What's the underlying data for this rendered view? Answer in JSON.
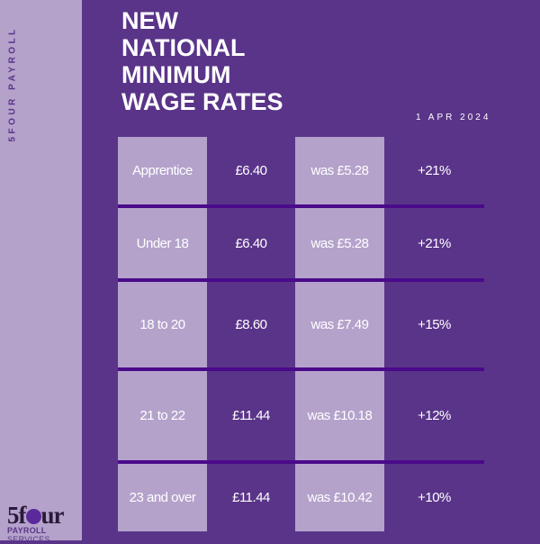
{
  "brand": {
    "side_label": "5FOUR PAYROLL",
    "logo_text": "5four",
    "logo_sub_bold": "PAYROLL",
    "logo_sub": "SERVICES"
  },
  "title": [
    "NEW",
    "NATIONAL",
    "MINIMUM",
    "WAGE RATES"
  ],
  "date": "1 APR 2024",
  "rows": [
    {
      "group": "Apprentice",
      "rate": "£6.40",
      "was": "was £5.28",
      "change": "+21%"
    },
    {
      "group": "Under 18",
      "rate": "£6.40",
      "was": "was £5.28",
      "change": "+21%"
    },
    {
      "group": "18 to 20",
      "rate": "£8.60",
      "was": "was £7.49",
      "change": "+15%"
    },
    {
      "group": "21 to 22",
      "rate": "£11.44",
      "was": "was £10.18",
      "change": "+12%"
    },
    {
      "group": "23 and over",
      "rate": "£11.44",
      "was": "was £10.42",
      "change": "+10%"
    }
  ],
  "colors": {
    "background": "#5a3489",
    "light": "#b4a2cb",
    "divider": "#4a0a8a"
  }
}
